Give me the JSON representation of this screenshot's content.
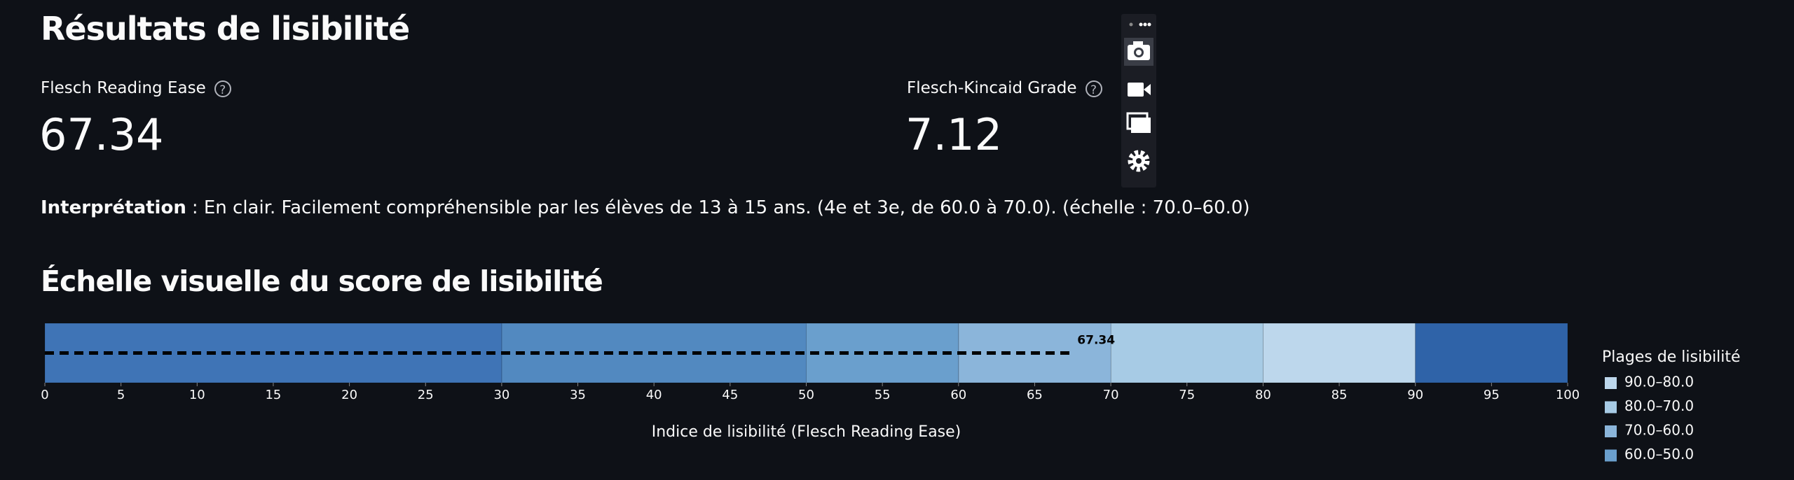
{
  "header": {
    "title": "Résultats de lisibilité"
  },
  "metrics": [
    {
      "label": "Flesch Reading Ease",
      "value": 67.34
    },
    {
      "label": "Flesch-Kincaid Grade",
      "value": 7.12
    }
  ],
  "interpretation": {
    "label": "Interprétation",
    "text": ": En clair. Facilement compréhensible par les élèves de 13 à 15 ans. (4e et 3e, de 60.0 à 70.0). (échelle : 70.0–60.0)"
  },
  "section": {
    "title": "Échelle visuelle du score de lisibilité"
  },
  "chart_data": {
    "type": "range-bar",
    "xlabel": "Indice de lisibilité (Flesch Reading Ease)",
    "xlim": [
      0,
      100
    ],
    "xticks": [
      0,
      5,
      10,
      15,
      20,
      25,
      30,
      35,
      40,
      45,
      50,
      55,
      60,
      65,
      70,
      75,
      80,
      85,
      90,
      95,
      100
    ],
    "legend_title": "Plages de lisibilité",
    "series": [
      {
        "name": "90.0–80.0",
        "color": "#bdd7ec",
        "values": [
          80,
          90
        ]
      },
      {
        "name": "80.0–70.0",
        "color": "#a7cbe5",
        "values": [
          70,
          80
        ]
      },
      {
        "name": "70.0–60.0",
        "color": "#8bb5da",
        "values": [
          60,
          70
        ]
      },
      {
        "name": "60.0–50.0",
        "color": "#6a9fcd",
        "values": [
          50,
          60
        ]
      },
      {
        "color": "#5289c0",
        "values": [
          30,
          50
        ]
      },
      {
        "color": "#3f74b6",
        "values": [
          0,
          30
        ]
      },
      {
        "color": "#2f63a8",
        "values": [
          90,
          100
        ]
      }
    ],
    "marker": {
      "value": 67.34,
      "color": "#000000"
    }
  }
}
